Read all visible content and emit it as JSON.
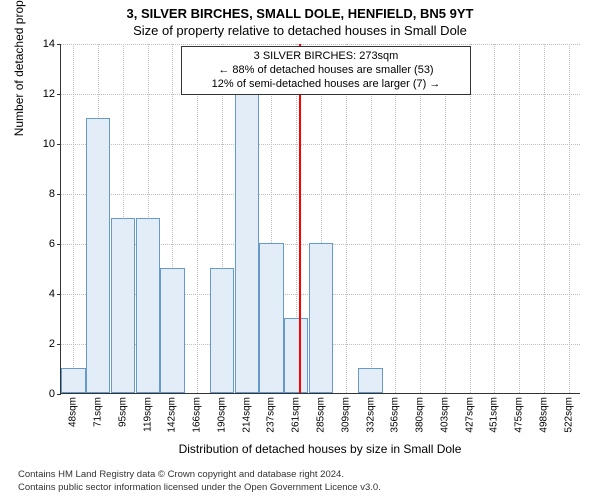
{
  "title_line1": "3, SILVER BIRCHES, SMALL DOLE, HENFIELD, BN5 9YT",
  "title_line2": "Size of property relative to detached houses in Small Dole",
  "ylabel": "Number of detached properties",
  "xlabel": "Distribution of detached houses by size in Small Dole",
  "chart": {
    "type": "histogram",
    "background_color": "#ffffff",
    "grid_color": "#bfbfbf",
    "axis_color": "#333333",
    "bar_fill": "#e3edf8",
    "bar_stroke": "#6699cc",
    "bar_stroke_width": 1,
    "ylim": [
      0,
      14
    ],
    "ytick_step": 2,
    "x_categories": [
      "48sqm",
      "71sqm",
      "95sqm",
      "119sqm",
      "142sqm",
      "166sqm",
      "190sqm",
      "214sqm",
      "237sqm",
      "261sqm",
      "285sqm",
      "309sqm",
      "332sqm",
      "356sqm",
      "380sqm",
      "403sqm",
      "427sqm",
      "451sqm",
      "475sqm",
      "498sqm",
      "522sqm"
    ],
    "values": [
      1,
      11,
      7,
      7,
      5,
      0,
      5,
      12,
      6,
      3,
      6,
      0,
      1,
      0,
      0,
      0,
      0,
      0,
      0,
      0,
      0
    ],
    "reference_line": {
      "x_index": 9.6,
      "color": "#ff0000",
      "width": 2
    }
  },
  "annotation": {
    "line1": "3 SILVER BIRCHES: 273sqm",
    "line2": "← 88% of detached houses are smaller (53)",
    "line3": "12% of semi-detached houses are larger (7) →",
    "bg_color": "#ffffff",
    "border_color": "#333333",
    "font_size": 11
  },
  "attribution_line1": "Contains HM Land Registry data © Crown copyright and database right 2024.",
  "attribution_line2": "Contains public sector information licensed under the Open Government Licence v3.0."
}
